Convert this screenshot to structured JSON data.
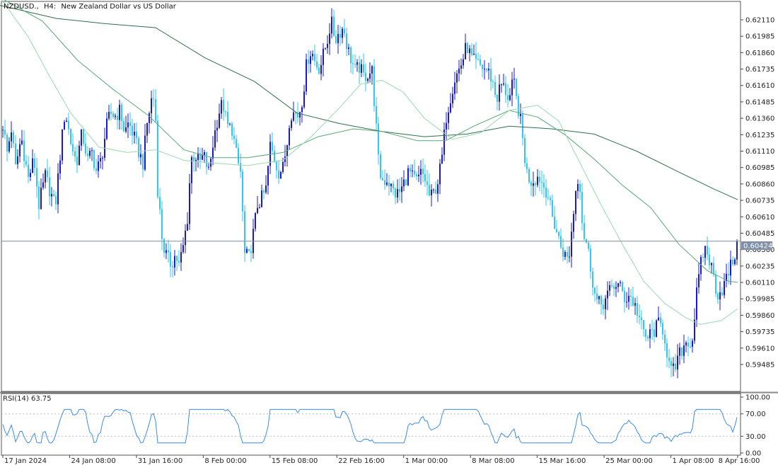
{
  "header": {
    "symbol": "NZDUSD.,",
    "timeframe": "H4:",
    "description": "New Zealand Dollar vs US Dollar"
  },
  "current_price_label": "0.60424",
  "rsi_label": "RSI(14) 63.75",
  "colors": {
    "bull_candle": "#1a1acc",
    "bear_candle": "#2ec8f0",
    "ma_slow": "#2f6f4a",
    "ma_medium": "#5aa876",
    "ma_fast": "#9ad9b0",
    "rsi_line": "#3b8be6",
    "grid_border": "#555555",
    "price_line": "#7f8fa6"
  },
  "chart_data": [
    {
      "type": "candlestick",
      "title": "NZDUSD., H4: New Zealand Dollar vs US Dollar",
      "ylim": [
        0.5928,
        0.6225
      ],
      "y_ticks": [
        "0.62110",
        "0.61985",
        "0.61860",
        "0.61735",
        "0.61610",
        "0.61485",
        "0.61360",
        "0.61235",
        "0.61110",
        "0.60985",
        "0.60860",
        "0.60735",
        "0.60610",
        "0.60485",
        "0.60360",
        "0.60235",
        "0.60110",
        "0.59985",
        "0.59860",
        "0.59735",
        "0.59610",
        "0.59485"
      ],
      "x_ticks": [
        "17 Jan 2024",
        "24 Jan 08:00",
        "31 Jan 16:00",
        "8 Feb 00:00",
        "15 Feb 08:00",
        "22 Feb 16:00",
        "1 Mar 00:00",
        "8 Mar 08:00",
        "15 Mar 16:00",
        "25 Mar 00:00",
        "1 Apr 08:00",
        "8 Apr 16:00"
      ],
      "current_price": 0.60424,
      "close_path": [
        [
          0,
          0.6145
        ],
        [
          10,
          0.611
        ],
        [
          16,
          0.6128
        ],
        [
          22,
          0.6098
        ],
        [
          30,
          0.6122
        ],
        [
          40,
          0.609
        ],
        [
          48,
          0.6105
        ],
        [
          55,
          0.607
        ],
        [
          64,
          0.6092
        ],
        [
          70,
          0.6082
        ],
        [
          78,
          0.6068
        ],
        [
          85,
          0.6108
        ],
        [
          92,
          0.6142
        ],
        [
          100,
          0.6118
        ],
        [
          108,
          0.6102
        ],
        [
          116,
          0.6125
        ],
        [
          124,
          0.6104
        ],
        [
          130,
          0.611
        ],
        [
          136,
          0.6096
        ],
        [
          143,
          0.6104
        ],
        [
          150,
          0.6128
        ],
        [
          156,
          0.614
        ],
        [
          163,
          0.6138
        ],
        [
          170,
          0.6142
        ],
        [
          176,
          0.6125
        ],
        [
          182,
          0.6133
        ],
        [
          188,
          0.6124
        ],
        [
          195,
          0.6112
        ],
        [
          202,
          0.6102
        ],
        [
          208,
          0.6132
        ],
        [
          214,
          0.615
        ],
        [
          219,
          0.6152
        ],
        [
          223,
          0.6082
        ],
        [
          230,
          0.604
        ],
        [
          236,
          0.603
        ],
        [
          242,
          0.6025
        ],
        [
          248,
          0.6032
        ],
        [
          253,
          0.6024
        ],
        [
          259,
          0.6038
        ],
        [
          265,
          0.606
        ],
        [
          270,
          0.6105
        ],
        [
          276,
          0.6108
        ],
        [
          282,
          0.6102
        ],
        [
          288,
          0.6108
        ],
        [
          295,
          0.6095
        ],
        [
          302,
          0.612
        ],
        [
          309,
          0.614
        ],
        [
          315,
          0.6148
        ],
        [
          321,
          0.613
        ],
        [
          328,
          0.6128
        ],
        [
          335,
          0.6105
        ],
        [
          340,
          0.6095
        ],
        [
          346,
          0.6032
        ],
        [
          352,
          0.603
        ],
        [
          358,
          0.6048
        ],
        [
          364,
          0.607
        ],
        [
          370,
          0.6075
        ],
        [
          376,
          0.6082
        ],
        [
          382,
          0.6115
        ],
        [
          388,
          0.6105
        ],
        [
          394,
          0.6095
        ],
        [
          400,
          0.6098
        ],
        [
          406,
          0.6118
        ],
        [
          410,
          0.614
        ],
        [
          416,
          0.614
        ],
        [
          422,
          0.6138
        ],
        [
          428,
          0.6152
        ],
        [
          434,
          0.618
        ],
        [
          440,
          0.6188
        ],
        [
          446,
          0.6178
        ],
        [
          452,
          0.6174
        ],
        [
          458,
          0.6186
        ],
        [
          463,
          0.6196
        ],
        [
          468,
          0.621
        ],
        [
          474,
          0.6196
        ],
        [
          480,
          0.6202
        ],
        [
          486,
          0.6205
        ],
        [
          491,
          0.619
        ],
        [
          497,
          0.618
        ],
        [
          502,
          0.6172
        ],
        [
          508,
          0.6175
        ],
        [
          514,
          0.6168
        ],
        [
          520,
          0.617
        ],
        [
          526,
          0.6172
        ],
        [
          529,
          0.615
        ],
        [
          532,
          0.6128
        ],
        [
          536,
          0.6095
        ],
        [
          542,
          0.6088
        ],
        [
          548,
          0.609
        ],
        [
          554,
          0.6082
        ],
        [
          560,
          0.6078
        ],
        [
          566,
          0.608
        ],
        [
          572,
          0.6088
        ],
        [
          578,
          0.6096
        ],
        [
          584,
          0.609
        ],
        [
          590,
          0.6088
        ],
        [
          596,
          0.6095
        ],
        [
          602,
          0.6088
        ],
        [
          608,
          0.6075
        ],
        [
          614,
          0.608
        ],
        [
          620,
          0.609
        ],
        [
          626,
          0.611
        ],
        [
          630,
          0.6135
        ],
        [
          636,
          0.615
        ],
        [
          642,
          0.6165
        ],
        [
          648,
          0.6172
        ],
        [
          654,
          0.618
        ],
        [
          660,
          0.6192
        ],
        [
          666,
          0.6182
        ],
        [
          672,
          0.6178
        ],
        [
          678,
          0.6176
        ],
        [
          684,
          0.6174
        ],
        [
          690,
          0.6172
        ],
        [
          696,
          0.6165
        ],
        [
          702,
          0.615
        ],
        [
          708,
          0.6162
        ],
        [
          714,
          0.6158
        ],
        [
          720,
          0.615
        ],
        [
          726,
          0.6165
        ],
        [
          730,
          0.615
        ],
        [
          735,
          0.6138
        ],
        [
          739,
          0.612
        ],
        [
          744,
          0.6096
        ],
        [
          750,
          0.6088
        ],
        [
          756,
          0.609
        ],
        [
          762,
          0.6092
        ],
        [
          768,
          0.6085
        ],
        [
          774,
          0.608
        ],
        [
          780,
          0.6062
        ],
        [
          786,
          0.6052
        ],
        [
          792,
          0.604
        ],
        [
          798,
          0.6032
        ],
        [
          804,
          0.6028
        ],
        [
          810,
          0.606
        ],
        [
          816,
          0.6092
        ],
        [
          820,
          0.6085
        ],
        [
          824,
          0.605
        ],
        [
          830,
          0.604
        ],
        [
          836,
          0.602
        ],
        [
          842,
          0.5998
        ],
        [
          848,
          0.5994
        ],
        [
          854,
          0.5996
        ],
        [
          860,
          0.6002
        ],
        [
          866,
          0.6008
        ],
        [
          872,
          0.601
        ],
        [
          878,
          0.6006
        ],
        [
          884,
          0.5998
        ],
        [
          890,
          0.6002
        ],
        [
          896,
          0.5995
        ],
        [
          902,
          0.5988
        ],
        [
          908,
          0.5975
        ],
        [
          914,
          0.5968
        ],
        [
          920,
          0.5972
        ],
        [
          926,
          0.5975
        ],
        [
          932,
          0.598
        ],
        [
          938,
          0.5975
        ],
        [
          944,
          0.5955
        ],
        [
          948,
          0.5942
        ],
        [
          954,
          0.5945
        ],
        [
          960,
          0.5955
        ],
        [
          966,
          0.5962
        ],
        [
          972,
          0.5968
        ],
        [
          978,
          0.5962
        ],
        [
          984,
          0.5998
        ],
        [
          990,
          0.6022
        ],
        [
          996,
          0.6038
        ],
        [
          1002,
          0.603
        ],
        [
          1008,
          0.6018
        ],
        [
          1014,
          0.6002
        ],
        [
          1020,
          0.6005
        ],
        [
          1026,
          0.6012
        ],
        [
          1032,
          0.6022
        ],
        [
          1038,
          0.603
        ],
        [
          1043,
          0.60424
        ]
      ],
      "moving_averages": [
        {
          "key": "slow",
          "points": [
            [
              0,
              0.6222
            ],
            [
              80,
              0.6212
            ],
            [
              150,
              0.6208
            ],
            [
              220,
              0.6205
            ],
            [
              290,
              0.6182
            ],
            [
              360,
              0.6164
            ],
            [
              420,
              0.614
            ],
            [
              480,
              0.6132
            ],
            [
              540,
              0.6126
            ],
            [
              600,
              0.6122
            ],
            [
              660,
              0.6124
            ],
            [
              720,
              0.613
            ],
            [
              780,
              0.6128
            ],
            [
              840,
              0.6124
            ],
            [
              900,
              0.6111
            ],
            [
              960,
              0.6095
            ],
            [
              1010,
              0.6082
            ],
            [
              1043,
              0.6074
            ]
          ]
        },
        {
          "key": "medium",
          "points": [
            [
              0,
              0.6228
            ],
            [
              60,
              0.621
            ],
            [
              110,
              0.618
            ],
            [
              160,
              0.6158
            ],
            [
              210,
              0.6138
            ],
            [
              260,
              0.6112
            ],
            [
              300,
              0.6106
            ],
            [
              350,
              0.6106
            ],
            [
              400,
              0.611
            ],
            [
              450,
              0.6122
            ],
            [
              500,
              0.6128
            ],
            [
              540,
              0.6126
            ],
            [
              590,
              0.6119
            ],
            [
              630,
              0.6119
            ],
            [
              670,
              0.613
            ],
            [
              720,
              0.6142
            ],
            [
              760,
              0.6137
            ],
            [
              800,
              0.6123
            ],
            [
              840,
              0.6105
            ],
            [
              880,
              0.6085
            ],
            [
              920,
              0.6068
            ],
            [
              960,
              0.604
            ],
            [
              1000,
              0.602
            ],
            [
              1030,
              0.6012
            ],
            [
              1043,
              0.6011
            ]
          ]
        },
        {
          "key": "fast",
          "points": [
            [
              0,
              0.6228
            ],
            [
              40,
              0.6198
            ],
            [
              70,
              0.6168
            ],
            [
              100,
              0.614
            ],
            [
              140,
              0.6114
            ],
            [
              180,
              0.611
            ],
            [
              220,
              0.6112
            ],
            [
              260,
              0.6104
            ],
            [
              300,
              0.6102
            ],
            [
              350,
              0.61
            ],
            [
              400,
              0.6104
            ],
            [
              440,
              0.6122
            ],
            [
              480,
              0.6144
            ],
            [
              510,
              0.6162
            ],
            [
              540,
              0.6165
            ],
            [
              570,
              0.6156
            ],
            [
              600,
              0.6136
            ],
            [
              640,
              0.612
            ],
            [
              680,
              0.6125
            ],
            [
              720,
              0.6142
            ],
            [
              760,
              0.6146
            ],
            [
              790,
              0.6134
            ],
            [
              820,
              0.6102
            ],
            [
              850,
              0.607
            ],
            [
              880,
              0.604
            ],
            [
              910,
              0.6012
            ],
            [
              940,
              0.5995
            ],
            [
              970,
              0.5984
            ],
            [
              990,
              0.5979
            ],
            [
              1020,
              0.5982
            ],
            [
              1043,
              0.5991
            ]
          ]
        }
      ]
    },
    {
      "type": "line",
      "title": "RSI(14) 63.75",
      "ylim": [
        0,
        100
      ],
      "y_ticks": [
        "100.00",
        "70.00",
        "30.00",
        "0.00"
      ],
      "levels": [
        70,
        30
      ],
      "last_value": 63.75
    }
  ]
}
